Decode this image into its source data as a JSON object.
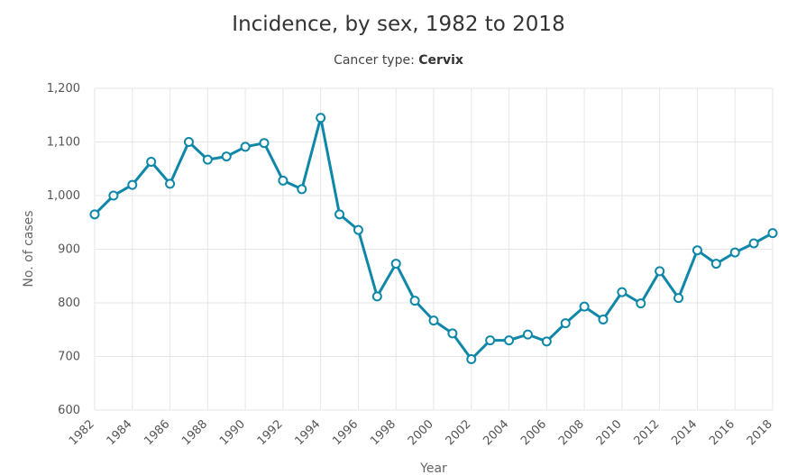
{
  "chart_data": {
    "type": "line",
    "title": "Incidence, by sex, 1982 to 2018",
    "subtitle_label": "Cancer type:",
    "subtitle_value": "Cervix",
    "xlabel": "Year",
    "ylabel": "No. of cases",
    "ylim": [
      600,
      1200
    ],
    "yticks": [
      600,
      700,
      800,
      900,
      1000,
      1100,
      1200
    ],
    "ytick_labels": [
      "600",
      "700",
      "800",
      "900",
      "1,000",
      "1,100",
      "1,200"
    ],
    "xlim": [
      1982,
      2018
    ],
    "xticks": [
      1982,
      1984,
      1986,
      1988,
      1990,
      1992,
      1994,
      1996,
      1998,
      2000,
      2002,
      2004,
      2006,
      2008,
      2010,
      2012,
      2014,
      2016,
      2018
    ],
    "grid": true,
    "colors": {
      "line": "#0e87a8",
      "marker_fill": "#ffffff",
      "grid": "#e6e6e6"
    },
    "series": [
      {
        "name": "Cervix",
        "x": [
          1982,
          1983,
          1984,
          1985,
          1986,
          1987,
          1988,
          1989,
          1990,
          1991,
          1992,
          1993,
          1994,
          1995,
          1996,
          1997,
          1998,
          1999,
          2000,
          2001,
          2002,
          2003,
          2004,
          2005,
          2006,
          2007,
          2008,
          2009,
          2010,
          2011,
          2012,
          2013,
          2014,
          2015,
          2016,
          2017,
          2018
        ],
        "values": [
          965,
          1000,
          1020,
          1063,
          1022,
          1100,
          1067,
          1073,
          1091,
          1098,
          1028,
          1012,
          1145,
          965,
          936,
          812,
          873,
          804,
          767,
          743,
          695,
          730,
          730,
          741,
          728,
          762,
          793,
          769,
          820,
          799,
          859,
          809,
          898,
          873,
          894,
          911,
          930
        ]
      }
    ]
  }
}
